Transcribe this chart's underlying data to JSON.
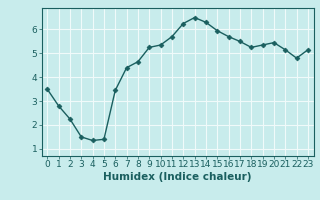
{
  "x": [
    0,
    1,
    2,
    3,
    4,
    5,
    6,
    7,
    8,
    9,
    10,
    11,
    12,
    13,
    14,
    15,
    16,
    17,
    18,
    19,
    20,
    21,
    22,
    23
  ],
  "y": [
    3.5,
    2.8,
    2.25,
    1.5,
    1.35,
    1.4,
    3.45,
    4.4,
    4.65,
    5.25,
    5.35,
    5.7,
    6.25,
    6.5,
    6.3,
    5.95,
    5.7,
    5.5,
    5.25,
    5.35,
    5.45,
    5.15,
    4.8,
    5.15
  ],
  "line_color": "#1a5f5f",
  "marker": "D",
  "markersize": 2.5,
  "linewidth": 1.0,
  "xlabel": "Humidex (Indice chaleur)",
  "xlim": [
    -0.5,
    23.5
  ],
  "ylim": [
    0.7,
    6.9
  ],
  "yticks": [
    1,
    2,
    3,
    4,
    5,
    6
  ],
  "xticks": [
    0,
    1,
    2,
    3,
    4,
    5,
    6,
    7,
    8,
    9,
    10,
    11,
    12,
    13,
    14,
    15,
    16,
    17,
    18,
    19,
    20,
    21,
    22,
    23
  ],
  "xtick_labels": [
    "0",
    "1",
    "2",
    "3",
    "4",
    "5",
    "6",
    "7",
    "8",
    "9",
    "10",
    "11",
    "12",
    "13",
    "14",
    "15",
    "16",
    "17",
    "18",
    "19",
    "20",
    "21",
    "22",
    "23"
  ],
  "bg_color": "#c8ecec",
  "grid_color": "#f0fafa",
  "tick_color": "#1a5f5f",
  "label_color": "#1a5f5f",
  "xlabel_fontsize": 7.5,
  "tick_fontsize": 6.5
}
